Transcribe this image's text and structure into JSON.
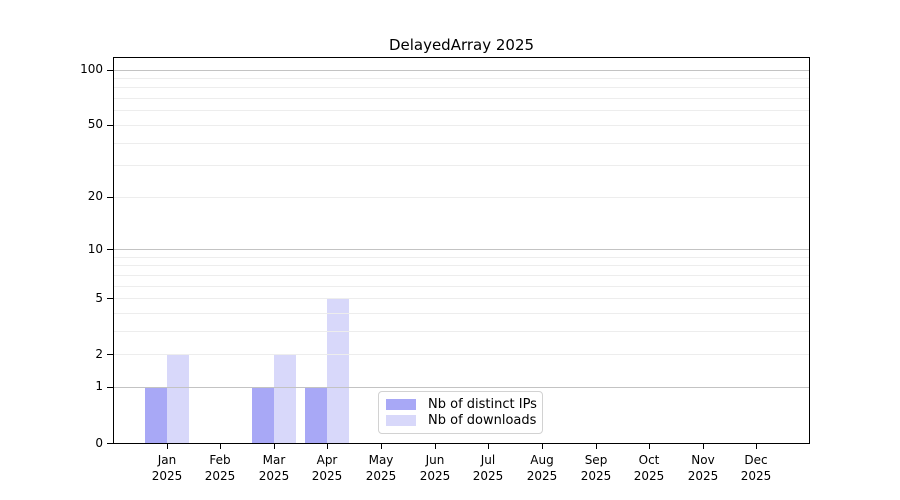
{
  "title": "DelayedArray 2025",
  "chart_data": {
    "type": "bar",
    "title": "DelayedArray 2025",
    "scale": "log1p",
    "ylim": [
      0,
      100
    ],
    "grid": true,
    "legend_position": "lower center",
    "categories": [
      "Jan 2025",
      "Feb 2025",
      "Mar 2025",
      "Apr 2025",
      "May 2025",
      "Jun 2025",
      "Jul 2025",
      "Aug 2025",
      "Sep 2025",
      "Oct 2025",
      "Nov 2025",
      "Dec 2025"
    ],
    "x_tick_months": [
      "Jan",
      "Feb",
      "Mar",
      "Apr",
      "May",
      "Jun",
      "Jul",
      "Aug",
      "Sep",
      "Oct",
      "Nov",
      "Dec"
    ],
    "x_tick_year": "2025",
    "y_ticks": [
      0,
      1,
      2,
      5,
      10,
      20,
      50,
      100
    ],
    "y_major_gridlines": [
      1,
      10,
      100
    ],
    "y_minor_gridlines": [
      2,
      3,
      4,
      5,
      6,
      7,
      8,
      9,
      20,
      30,
      40,
      50,
      60,
      70,
      80,
      90
    ],
    "series": [
      {
        "name": "Nb of distinct IPs",
        "color": "#a8a8f6",
        "values": [
          1,
          0,
          1,
          1,
          0,
          0,
          0,
          0,
          0,
          0,
          0,
          0
        ]
      },
      {
        "name": "Nb of downloads",
        "color": "#d8d8fa",
        "values": [
          2,
          0,
          2,
          5,
          0,
          0,
          0,
          0,
          0,
          0,
          0,
          0
        ]
      }
    ]
  }
}
